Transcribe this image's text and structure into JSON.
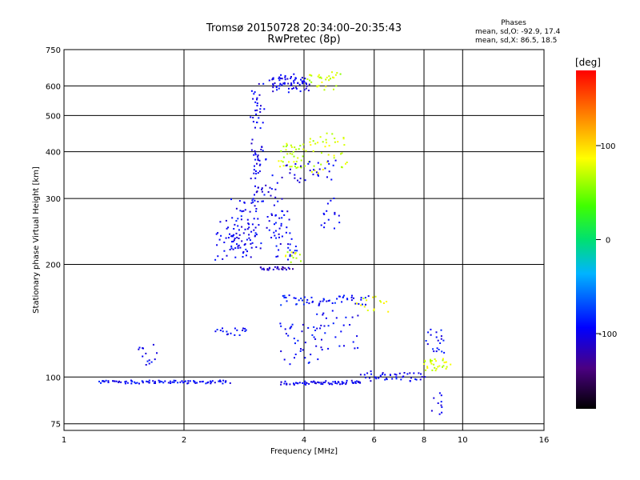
{
  "chart_data": {
    "type": "scatter",
    "title": "Tromsø 20150728 20:34:00–20:35:43",
    "subtitle": "RwPretec (8p)",
    "xlabel": "Frequency [MHz]",
    "ylabel": "Stationary phase Virtual Height [km]",
    "x_scale": "log",
    "y_scale": "log",
    "xlim": [
      1,
      16
    ],
    "ylim": [
      72,
      750
    ],
    "x_ticks": [
      1,
      2,
      4,
      6,
      8,
      10,
      16
    ],
    "y_ticks": [
      75,
      100,
      200,
      300,
      400,
      500,
      600,
      750
    ],
    "grid": true,
    "phase_stats": {
      "heading": "Phases",
      "line_o": "mean, sd,O: -92.9, 17.4",
      "line_x": "mean, sd,X:  86.5, 18.5"
    },
    "colorbar": {
      "label": "[deg]",
      "ticks": [
        100,
        0,
        -100
      ],
      "range": [
        -180,
        180
      ]
    },
    "series": [
      {
        "segments": [
          {
            "x0": 1.22,
            "x1": 2.6,
            "y0": 97,
            "y1": 97,
            "n": 90,
            "phase": -95
          },
          {
            "x0": 3.5,
            "x1": 5.6,
            "y0": 96,
            "y1": 97,
            "n": 70,
            "phase": -100
          },
          {
            "x0": 5.6,
            "x1": 8.0,
            "y0": 98,
            "y1": 103,
            "n": 45,
            "phase": -95
          },
          {
            "x0": 8.0,
            "x1": 9.2,
            "y0": 104,
            "y1": 112,
            "n": 30,
            "phase": 75
          },
          {
            "x0": 2.4,
            "x1": 3.0,
            "y0": 205,
            "y1": 265,
            "n": 45,
            "phase": -100
          },
          {
            "x0": 2.6,
            "x1": 3.1,
            "y0": 215,
            "y1": 300,
            "n": 60,
            "phase": -95
          },
          {
            "x0": 2.95,
            "x1": 3.15,
            "y0": 290,
            "y1": 620,
            "n": 70,
            "phase": -100
          },
          {
            "x0": 3.1,
            "x1": 3.7,
            "y0": 195,
            "y1": 195,
            "n": 25,
            "phase": -115
          },
          {
            "x0": 3.3,
            "x1": 4.1,
            "y0": 580,
            "y1": 640,
            "n": 70,
            "phase": -100
          },
          {
            "x0": 4.1,
            "x1": 4.9,
            "y0": 590,
            "y1": 650,
            "n": 30,
            "phase": 70
          },
          {
            "x0": 3.5,
            "x1": 4.0,
            "y0": 360,
            "y1": 420,
            "n": 40,
            "phase": 70
          },
          {
            "x0": 4.1,
            "x1": 5.1,
            "y0": 340,
            "y1": 450,
            "n": 40,
            "phase": 75
          },
          {
            "x0": 3.6,
            "x1": 4.8,
            "y0": 330,
            "y1": 380,
            "n": 30,
            "phase": -100
          },
          {
            "x0": 3.4,
            "x1": 3.8,
            "y0": 200,
            "y1": 280,
            "n": 30,
            "phase": -95
          },
          {
            "x0": 3.6,
            "x1": 3.9,
            "y0": 200,
            "y1": 215,
            "n": 12,
            "phase": 75
          },
          {
            "x0": 3.5,
            "x1": 5.8,
            "y0": 155,
            "y1": 165,
            "n": 55,
            "phase": -90
          },
          {
            "x0": 2.4,
            "x1": 2.9,
            "y0": 130,
            "y1": 135,
            "n": 18,
            "phase": -95
          },
          {
            "x0": 1.55,
            "x1": 1.7,
            "y0": 107,
            "y1": 122,
            "n": 14,
            "phase": -95
          },
          {
            "x0": 3.5,
            "x1": 4.5,
            "y0": 108,
            "y1": 140,
            "n": 40,
            "phase": -95
          },
          {
            "x0": 4.3,
            "x1": 5.5,
            "y0": 118,
            "y1": 150,
            "n": 25,
            "phase": -95
          },
          {
            "x0": 8.2,
            "x1": 9.0,
            "y0": 115,
            "y1": 135,
            "n": 20,
            "phase": -95
          },
          {
            "x0": 8.5,
            "x1": 8.9,
            "y0": 78,
            "y1": 93,
            "n": 10,
            "phase": -100
          },
          {
            "x0": 3.2,
            "x1": 3.5,
            "y0": 230,
            "y1": 380,
            "n": 35,
            "phase": -100
          },
          {
            "x0": 4.4,
            "x1": 4.9,
            "y0": 240,
            "y1": 300,
            "n": 15,
            "phase": -100
          },
          {
            "x0": 5.5,
            "x1": 6.5,
            "y0": 150,
            "y1": 165,
            "n": 15,
            "phase": 80
          }
        ]
      }
    ]
  }
}
